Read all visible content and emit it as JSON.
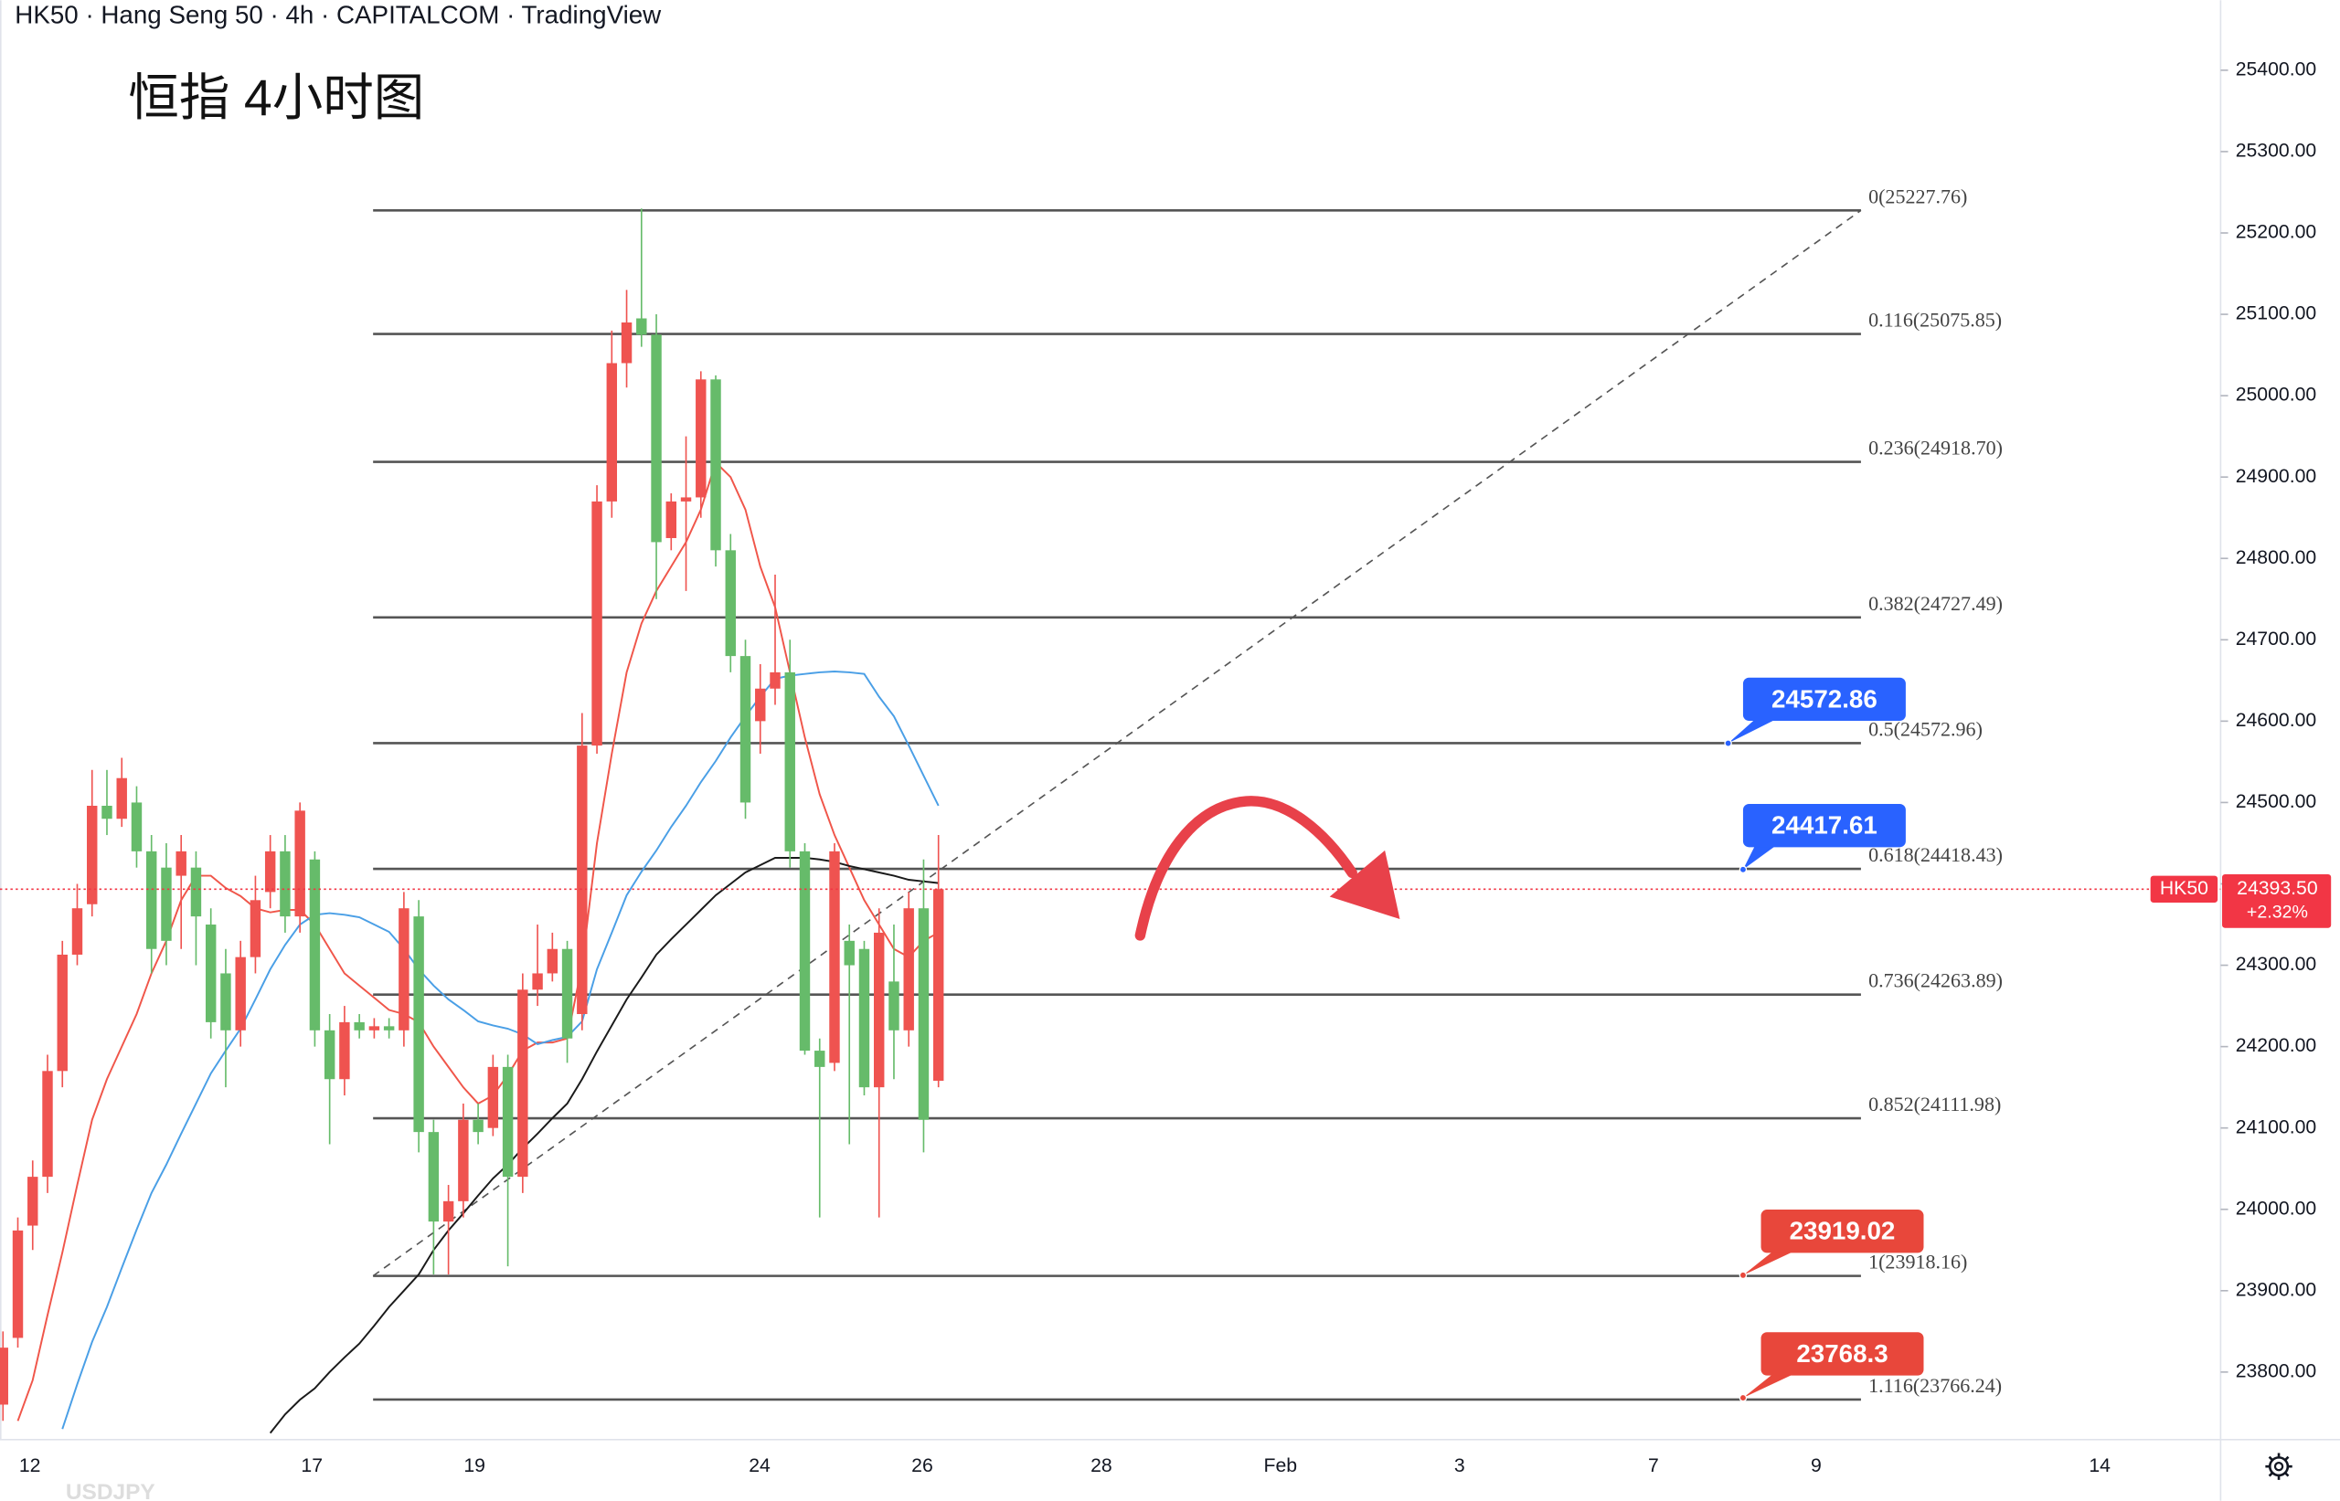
{
  "chart_data": {
    "type": "candlestick",
    "title": "HK50 · Hang Seng 50 · 4h · CAPITALCOM · TradingView",
    "annotation": "恒指 4小时图",
    "watermark": "USDJPY",
    "date_labels": [
      "12",
      "17",
      "19",
      "24",
      "26",
      "28",
      "Feb",
      "3",
      "7",
      "9",
      "14"
    ],
    "up_color": "#ef5350",
    "down_color": "#66bb6a",
    "open": [
      23760,
      23842,
      23980,
      24040,
      24170,
      24313,
      24375,
      24496,
      24480,
      24500,
      24440,
      24420,
      24410,
      24420,
      24350,
      24290,
      24220,
      24310,
      24390,
      24440,
      24360,
      24430,
      24220,
      24160,
      24230,
      24220,
      24225,
      24220,
      24360,
      24095,
      23985,
      24010,
      24110,
      24100,
      24175,
      24040,
      24270,
      24290,
      24320,
      24240,
      24570,
      24870,
      25040,
      25095,
      25075,
      24825,
      24870,
      24875,
      25020,
      24810,
      24680,
      24600,
      24640,
      24660,
      24440,
      24195,
      24180,
      24330,
      24320,
      24150,
      24280,
      24220,
      24370,
      24158
    ],
    "high": [
      23850,
      23990,
      24060,
      24190,
      24330,
      24400,
      24540,
      24540,
      24555,
      24520,
      24460,
      24450,
      24460,
      24440,
      24370,
      24320,
      24330,
      24410,
      24460,
      24460,
      24500,
      24440,
      24240,
      24250,
      24240,
      24235,
      24235,
      24390,
      24380,
      24110,
      24030,
      24130,
      24130,
      24190,
      24190,
      24290,
      24350,
      24340,
      24330,
      24610,
      24890,
      25080,
      25130,
      25230,
      25100,
      24880,
      24950,
      25030,
      25025,
      24830,
      24700,
      24670,
      24780,
      24700,
      24450,
      24210,
      24450,
      24350,
      24330,
      24370,
      24350,
      24390,
      24430,
      24460
    ],
    "low": [
      23740,
      23830,
      23950,
      24020,
      24150,
      24300,
      24360,
      24460,
      24470,
      24420,
      24290,
      24300,
      24320,
      24300,
      24210,
      24150,
      24200,
      24290,
      24370,
      24340,
      24340,
      24200,
      24080,
      24140,
      24210,
      24210,
      24210,
      24200,
      24070,
      23920,
      23920,
      23990,
      24080,
      24090,
      23930,
      24020,
      24250,
      24280,
      24180,
      24220,
      24560,
      24850,
      25010,
      25060,
      24750,
      24810,
      24760,
      24850,
      24790,
      24660,
      24480,
      24560,
      24620,
      24420,
      24190,
      23990,
      24170,
      24080,
      24140,
      23990,
      24160,
      24200,
      24070,
      24150
    ],
    "close": [
      23830,
      23974,
      24040,
      24170,
      24313,
      24370,
      24496,
      24480,
      24530,
      24440,
      24320,
      24330,
      24440,
      24360,
      24230,
      24220,
      24310,
      24380,
      24440,
      24360,
      24490,
      24220,
      24160,
      24230,
      24220,
      24225,
      24220,
      24370,
      24095,
      23985,
      24010,
      24110,
      24095,
      24175,
      24040,
      24270,
      24290,
      24320,
      24210,
      24570,
      24870,
      25040,
      25090,
      25075,
      24820,
      24870,
      24875,
      25020,
      24810,
      24680,
      24500,
      24640,
      24660,
      24440,
      24195,
      24175,
      24440,
      24300,
      24150,
      24340,
      24220,
      24370,
      24110,
      24393.5
    ],
    "series": [
      {
        "color": "#f0564a",
        "values": [
          null,
          23740,
          23790,
          23870,
          23947,
          24030,
          24110,
          24160,
          24200,
          24240,
          24290,
          24330,
          24380,
          24410,
          24410,
          24395,
          24385,
          24370,
          24365,
          24368,
          24368,
          24350,
          24320,
          24290,
          24275,
          24260,
          24245,
          24240,
          24230,
          24200,
          24175,
          24150,
          24130,
          24140,
          24165,
          24195,
          24205,
          24205,
          24210,
          24300,
          24450,
          24560,
          24660,
          24720,
          24760,
          24790,
          24820,
          24860,
          24918,
          24900,
          24860,
          24790,
          24740,
          24660,
          24580,
          24510,
          24460,
          24420,
          24380,
          24350,
          24320,
          24310,
          24330,
          24340
        ]
      },
      {
        "color": "#4a9fe6",
        "values": [
          null,
          null,
          null,
          null,
          23730,
          23785,
          23837,
          23880,
          23928,
          23975,
          24020,
          24055,
          24093,
          24130,
          24167,
          24195,
          24222,
          24258,
          24295,
          24325,
          24350,
          24362,
          24364,
          24362,
          24359,
          24350,
          24341,
          24320,
          24295,
          24275,
          24258,
          24245,
          24231,
          24226,
          24222,
          24215,
          24203,
          24208,
          24212,
          24231,
          24295,
          24340,
          24386,
          24415,
          24441,
          24470,
          24496,
          24525,
          24551,
          24580,
          24606,
          24630,
          24652,
          24656,
          24658,
          24660,
          24661,
          24660,
          24658,
          24630,
          24606,
          24570,
          24533,
          24496
        ]
      },
      {
        "color": "#1a1a1a",
        "values": [
          null,
          null,
          null,
          null,
          null,
          null,
          null,
          null,
          null,
          null,
          null,
          null,
          null,
          null,
          null,
          null,
          null,
          null,
          23725,
          23748,
          23766,
          23780,
          23800,
          23818,
          23835,
          23857,
          23880,
          23900,
          23920,
          23950,
          23974,
          23995,
          24017,
          24038,
          24055,
          24075,
          24093,
          24112,
          24130,
          24160,
          24194,
          24226,
          24258,
          24285,
          24313,
          24332,
          24350,
          24368,
          24386,
          24400,
          24414,
          24423,
          24432,
          24432,
          24432,
          24430,
          24427,
          24422,
          24418,
          24414,
          24410,
          24405,
          24403,
          24401
        ]
      }
    ],
    "ylim": [
      23717,
      25486
    ],
    "yticks": [
      {
        "value": 23800,
        "label": "23800.00"
      },
      {
        "value": 23900,
        "label": "23900.00"
      },
      {
        "value": 24000,
        "label": "24000.00"
      },
      {
        "value": 24100,
        "label": "24100.00"
      },
      {
        "value": 24200,
        "label": "24200.00"
      },
      {
        "value": 24300,
        "label": "24300.00"
      },
      {
        "value": 24400,
        "label": "24400.00"
      },
      {
        "value": 24500,
        "label": "24500.00"
      },
      {
        "value": 24600,
        "label": "24600.00"
      },
      {
        "value": 24700,
        "label": "24700.00"
      },
      {
        "value": 24800,
        "label": "24800.00"
      },
      {
        "value": 24900,
        "label": "24900.00"
      },
      {
        "value": 25000,
        "label": "25000.00"
      },
      {
        "value": 25100,
        "label": "25100.00"
      },
      {
        "value": 25200,
        "label": "25200.00"
      },
      {
        "value": 25300,
        "label": "25300.00"
      },
      {
        "value": 25400,
        "label": "25400.00"
      }
    ],
    "fib_levels": [
      {
        "value": 25227.76,
        "label": "0(25227.76)"
      },
      {
        "value": 25075.85,
        "label": "0.116(25075.85)"
      },
      {
        "value": 24918.7,
        "label": "0.236(24918.70)"
      },
      {
        "value": 24727.49,
        "label": "0.382(24727.49)"
      },
      {
        "value": 24572.96,
        "label": "0.5(24572.96)"
      },
      {
        "value": 24418.43,
        "label": "0.618(24418.43)"
      },
      {
        "value": 24263.89,
        "label": "0.736(24263.89)"
      },
      {
        "value": 24111.98,
        "label": "0.852(24111.98)"
      },
      {
        "value": 23918.16,
        "label": "1(23918.16)"
      },
      {
        "value": 23766.24,
        "label": "1.116(23766.24)"
      }
    ],
    "price_tags": [
      {
        "value": 24572.86,
        "color": "#2962ff"
      },
      {
        "value": 24417.61,
        "color": "#2962ff"
      },
      {
        "value": 23919.02,
        "color": "#e8473b"
      },
      {
        "value": 23768.3,
        "color": "#e8473b"
      }
    ],
    "last_price": {
      "symbol": "HK50",
      "price": {
        "value": 24393.5,
        "label": "24393.50"
      },
      "change": {
        "value": 2.32,
        "label": "+2.32%"
      },
      "color": "#f23645"
    }
  }
}
